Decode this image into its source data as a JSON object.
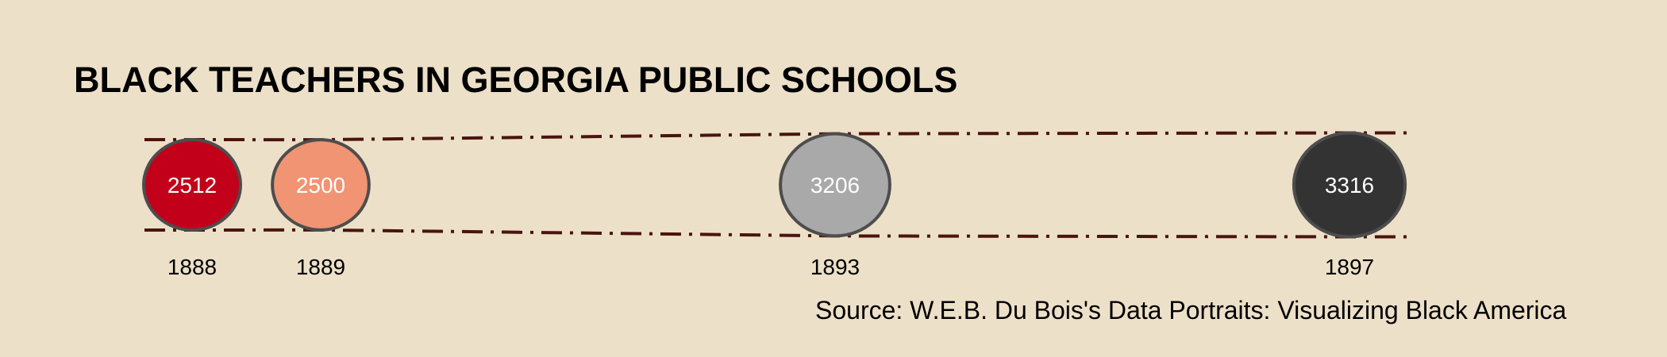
{
  "chart_data": {
    "type": "bubble",
    "title": "BLACK TEACHERS IN GEORGIA PUBLIC SCHOOLS",
    "source": "Source: W.E.B. Du Bois's Data Portraits: Visualizing Black America",
    "x_domain": [
      1888,
      1897
    ],
    "points": [
      {
        "year": "1888",
        "x": 1888,
        "value": 2512,
        "color": "#c2001a"
      },
      {
        "year": "1889",
        "x": 1889,
        "value": 2500,
        "color": "#f09473"
      },
      {
        "year": "1893",
        "x": 1893,
        "value": 3206,
        "color": "#a9a9a9"
      },
      {
        "year": "1897",
        "x": 1897,
        "value": 3316,
        "color": "#333333"
      }
    ],
    "colors": {
      "background": "#ede0c8",
      "outline": "#4d4d4d",
      "envelope": "#4a1410"
    }
  }
}
